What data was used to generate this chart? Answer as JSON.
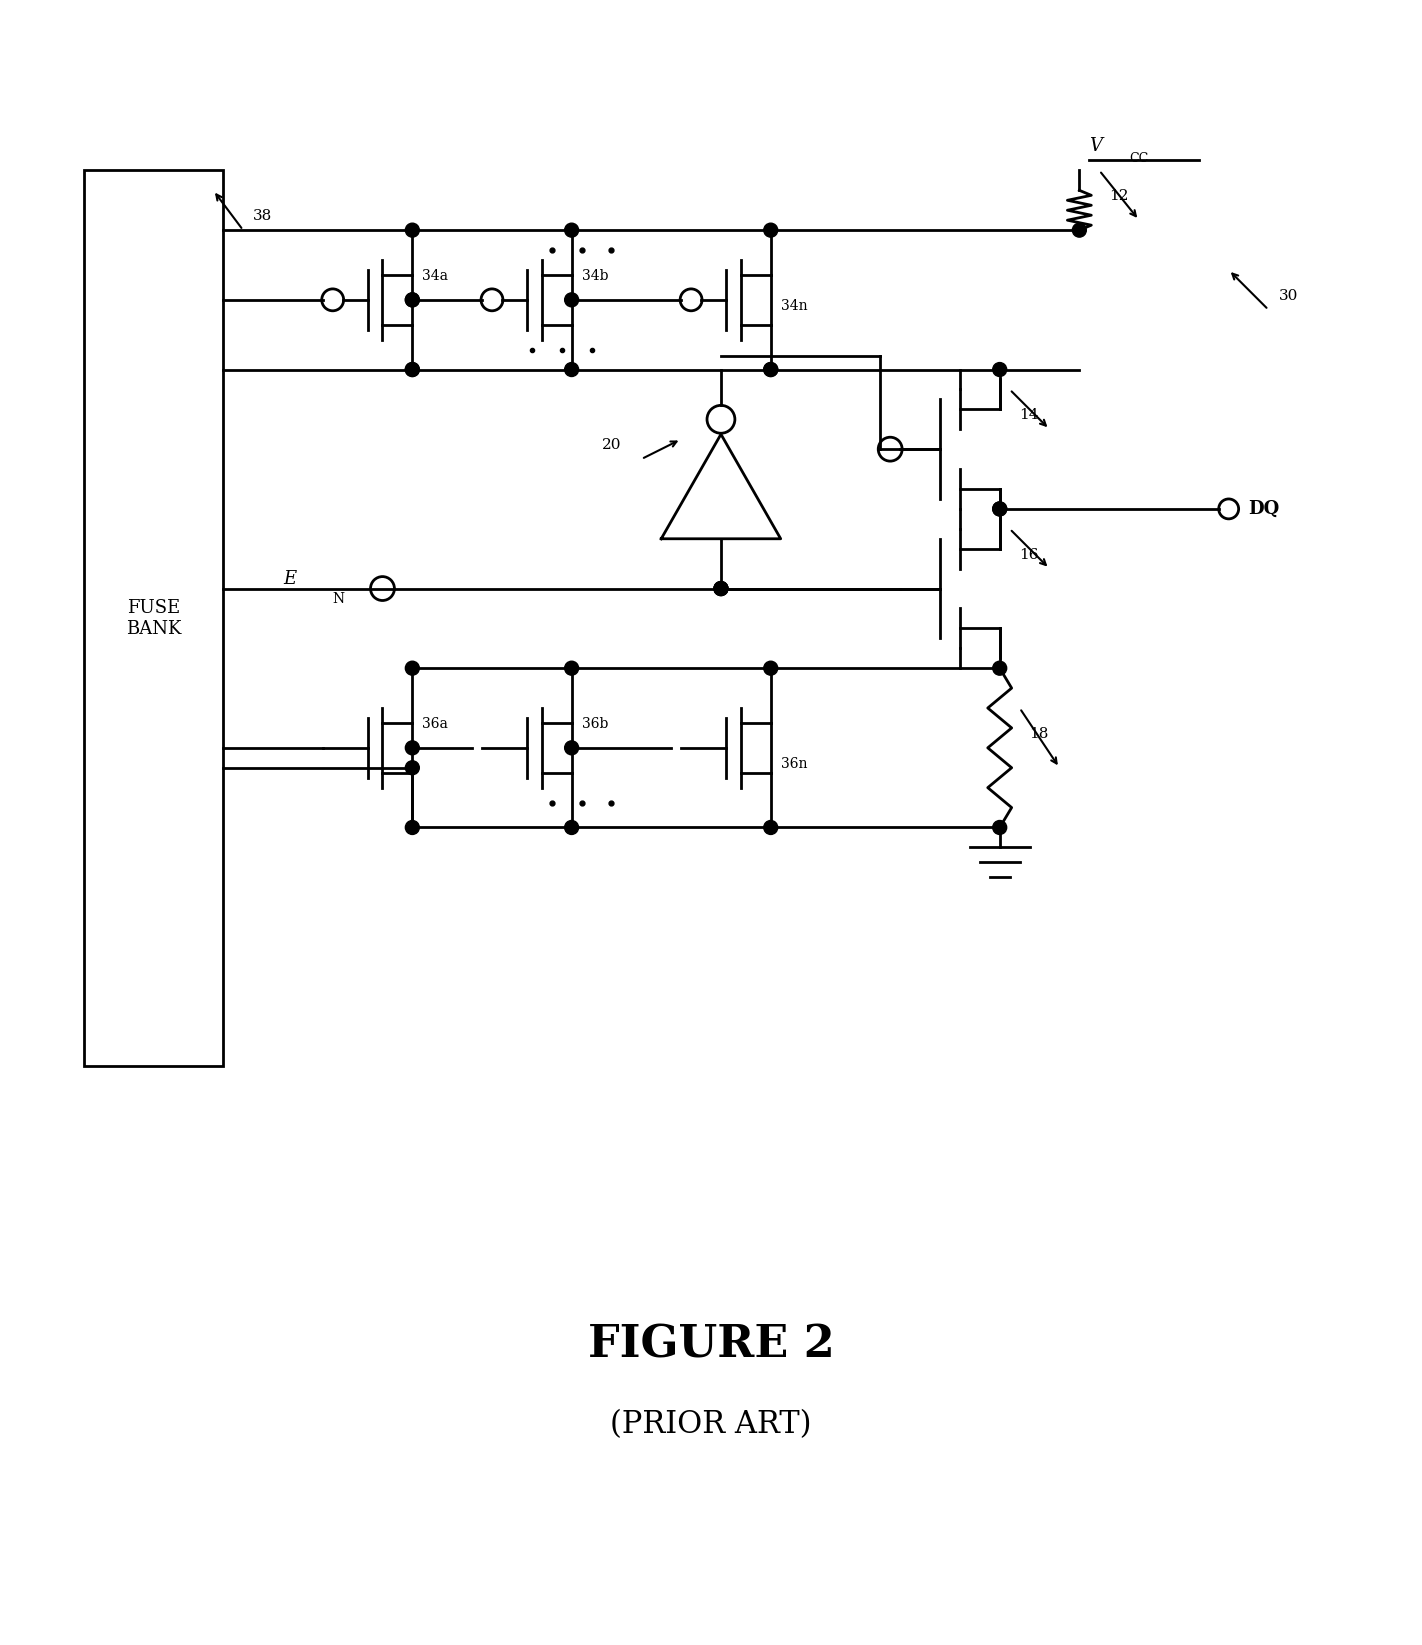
{
  "title": "FIGURE 2",
  "subtitle": "(PRIOR ART)",
  "bg_color": "#ffffff",
  "line_color": "#000000",
  "figsize": [
    14.22,
    16.45
  ],
  "dpi": 100,
  "labels": {
    "fuse_bank": "FUSE\nBANK",
    "dq": "DQ",
    "ref_38": "38",
    "ref_30": "30",
    "ref_12": "12",
    "ref_14": "14",
    "ref_16": "16",
    "ref_18": "18",
    "ref_20": "20",
    "ref_34a": "34a",
    "ref_34b": "34b",
    "ref_34n": "34n",
    "ref_36a": "36a",
    "ref_36b": "36b",
    "ref_36n": "36n"
  }
}
